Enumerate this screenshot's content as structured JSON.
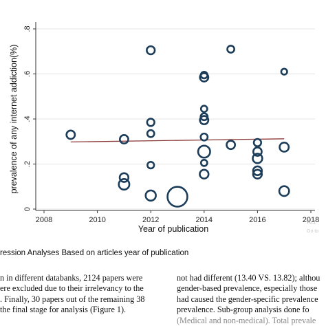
{
  "chart_data": {
    "type": "scatter",
    "xlabel": "Year of publication",
    "ylabel": "prevalence of any internet addiction(%)",
    "xlim": [
      2008,
      2018
    ],
    "ylim": [
      0,
      0.8
    ],
    "x_ticks": [
      "2008",
      "2010",
      "2012",
      "2014",
      "2016",
      "2018"
    ],
    "y_ticks": [
      "0",
      ".2",
      ".4",
      ".6",
      ".8"
    ],
    "grid": true,
    "marker_color": "#1c3d5a",
    "line_color": "#8b3a3a",
    "points": [
      {
        "x": 2009,
        "y": 0.33,
        "weight": 1.2
      },
      {
        "x": 2011,
        "y": 0.31,
        "weight": 1.2
      },
      {
        "x": 2011,
        "y": 0.14,
        "weight": 1.3
      },
      {
        "x": 2011,
        "y": 0.11,
        "weight": 1.8
      },
      {
        "x": 2012,
        "y": 0.705,
        "weight": 1.1
      },
      {
        "x": 2012,
        "y": 0.385,
        "weight": 0.9
      },
      {
        "x": 2012,
        "y": 0.335,
        "weight": 0.8
      },
      {
        "x": 2012,
        "y": 0.195,
        "weight": 0.7
      },
      {
        "x": 2012,
        "y": 0.06,
        "weight": 1.7
      },
      {
        "x": 2013,
        "y": 0.055,
        "weight": 4.4
      },
      {
        "x": 2014,
        "y": 0.595,
        "weight": 0.7
      },
      {
        "x": 2014,
        "y": 0.585,
        "weight": 1.2
      },
      {
        "x": 2014,
        "y": 0.445,
        "weight": 0.6
      },
      {
        "x": 2014,
        "y": 0.41,
        "weight": 0.8
      },
      {
        "x": 2014,
        "y": 0.395,
        "weight": 1.2
      },
      {
        "x": 2014,
        "y": 0.32,
        "weight": 0.8
      },
      {
        "x": 2014,
        "y": 0.255,
        "weight": 2.2
      },
      {
        "x": 2014,
        "y": 0.205,
        "weight": 0.6
      },
      {
        "x": 2014,
        "y": 0.155,
        "weight": 1.3
      },
      {
        "x": 2015,
        "y": 0.71,
        "weight": 0.8
      },
      {
        "x": 2015,
        "y": 0.285,
        "weight": 1.2
      },
      {
        "x": 2016,
        "y": 0.295,
        "weight": 0.9
      },
      {
        "x": 2016,
        "y": 0.255,
        "weight": 1.2
      },
      {
        "x": 2016,
        "y": 0.225,
        "weight": 1.5
      },
      {
        "x": 2016,
        "y": 0.17,
        "weight": 1.3
      },
      {
        "x": 2016,
        "y": 0.155,
        "weight": 1.3
      },
      {
        "x": 2017,
        "y": 0.61,
        "weight": 0.5
      },
      {
        "x": 2017,
        "y": 0.275,
        "weight": 1.4
      },
      {
        "x": 2017,
        "y": 0.08,
        "weight": 1.6
      }
    ],
    "fit_line": {
      "x": [
        2009,
        2017
      ],
      "y": [
        0.298,
        0.312
      ]
    }
  },
  "watermark": {
    "line1": "Act",
    "line2": "Go to"
  },
  "caption": "ression Analyses Based on articles year of publication",
  "body_left": [
    "n in different databanks, 2124 papers were",
    "ere excluded due to their irrelevancy to the",
    ". Finally, 30 papers out of the remaining 38",
    "the final stage for analysis (Figure 1)."
  ],
  "body_right": [
    "not had different (13.40 VS. 13.82); althou",
    "gender-based prevalence, especially those",
    "had caused the gender-specific prevalence",
    "prevalence. Sub-group analysis done fo",
    "(Medical and non-medical). Total prevale"
  ]
}
